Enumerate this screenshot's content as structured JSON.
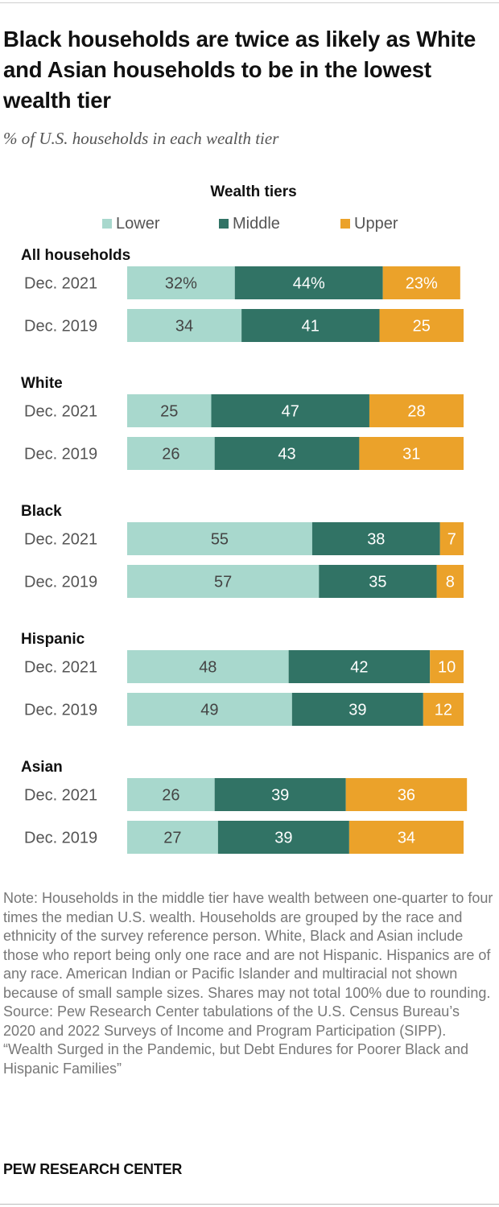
{
  "title": "Black households are twice as likely as White and Asian households to be in the lowest wealth tier",
  "subtitle": "% of U.S. households in each wealth tier",
  "legend": {
    "title": "Wealth tiers",
    "items": [
      {
        "label": "Lower",
        "color": "#a8d8cd"
      },
      {
        "label": "Middle",
        "color": "#317365"
      },
      {
        "label": "Upper",
        "color": "#eba22a"
      }
    ]
  },
  "chart_data": {
    "type": "bar",
    "orientation": "horizontal",
    "stacked": true,
    "xlim": [
      0,
      100
    ],
    "series_names": [
      "Lower",
      "Middle",
      "Upper"
    ],
    "colors": [
      "#a8d8cd",
      "#317365",
      "#eba22a"
    ],
    "label_colors": [
      "#444444",
      "#ffffff",
      "#ffffff"
    ],
    "groups": [
      {
        "name": "All households",
        "rows": [
          {
            "label": "Dec. 2021",
            "values": [
              32,
              44,
              23
            ],
            "value_labels": [
              "32%",
              "44%",
              "23%"
            ]
          },
          {
            "label": "Dec. 2019",
            "values": [
              34,
              41,
              25
            ],
            "value_labels": [
              "34",
              "41",
              "25"
            ]
          }
        ]
      },
      {
        "name": "White",
        "rows": [
          {
            "label": "Dec. 2021",
            "values": [
              25,
              47,
              28
            ],
            "value_labels": [
              "25",
              "47",
              "28"
            ]
          },
          {
            "label": "Dec. 2019",
            "values": [
              26,
              43,
              31
            ],
            "value_labels": [
              "26",
              "43",
              "31"
            ]
          }
        ]
      },
      {
        "name": "Black",
        "rows": [
          {
            "label": "Dec. 2021",
            "values": [
              55,
              38,
              7
            ],
            "value_labels": [
              "55",
              "38",
              "7"
            ]
          },
          {
            "label": "Dec. 2019",
            "values": [
              57,
              35,
              8
            ],
            "value_labels": [
              "57",
              "35",
              "8"
            ]
          }
        ]
      },
      {
        "name": "Hispanic",
        "rows": [
          {
            "label": "Dec. 2021",
            "values": [
              48,
              42,
              10
            ],
            "value_labels": [
              "48",
              "42",
              "10"
            ]
          },
          {
            "label": "Dec. 2019",
            "values": [
              49,
              39,
              12
            ],
            "value_labels": [
              "49",
              "39",
              "12"
            ]
          }
        ]
      },
      {
        "name": "Asian",
        "rows": [
          {
            "label": "Dec. 2021",
            "values": [
              26,
              39,
              36
            ],
            "value_labels": [
              "26",
              "39",
              "36"
            ]
          },
          {
            "label": "Dec. 2019",
            "values": [
              27,
              39,
              34
            ],
            "value_labels": [
              "27",
              "39",
              "34"
            ]
          }
        ]
      }
    ]
  },
  "note": "Note: Households in the middle tier have wealth between one-quarter to four times the median U.S. wealth. Households are grouped by the race and ethnicity of the survey reference person. White, Black and Asian include those who report being only one race and are not Hispanic. Hispanics are of any race. American Indian or Pacific Islander and multiracial not shown because of small sample sizes. Shares may not total 100% due to rounding.",
  "source": "Source: Pew Research Center tabulations of the U.S. Census Bureau’s 2020 and 2022 Surveys of Income and Program Participation (SIPP).",
  "report": "“Wealth Surged in the Pandemic, but Debt Endures for Poorer Black and Hispanic Families”",
  "brand": "PEW RESEARCH CENTER"
}
